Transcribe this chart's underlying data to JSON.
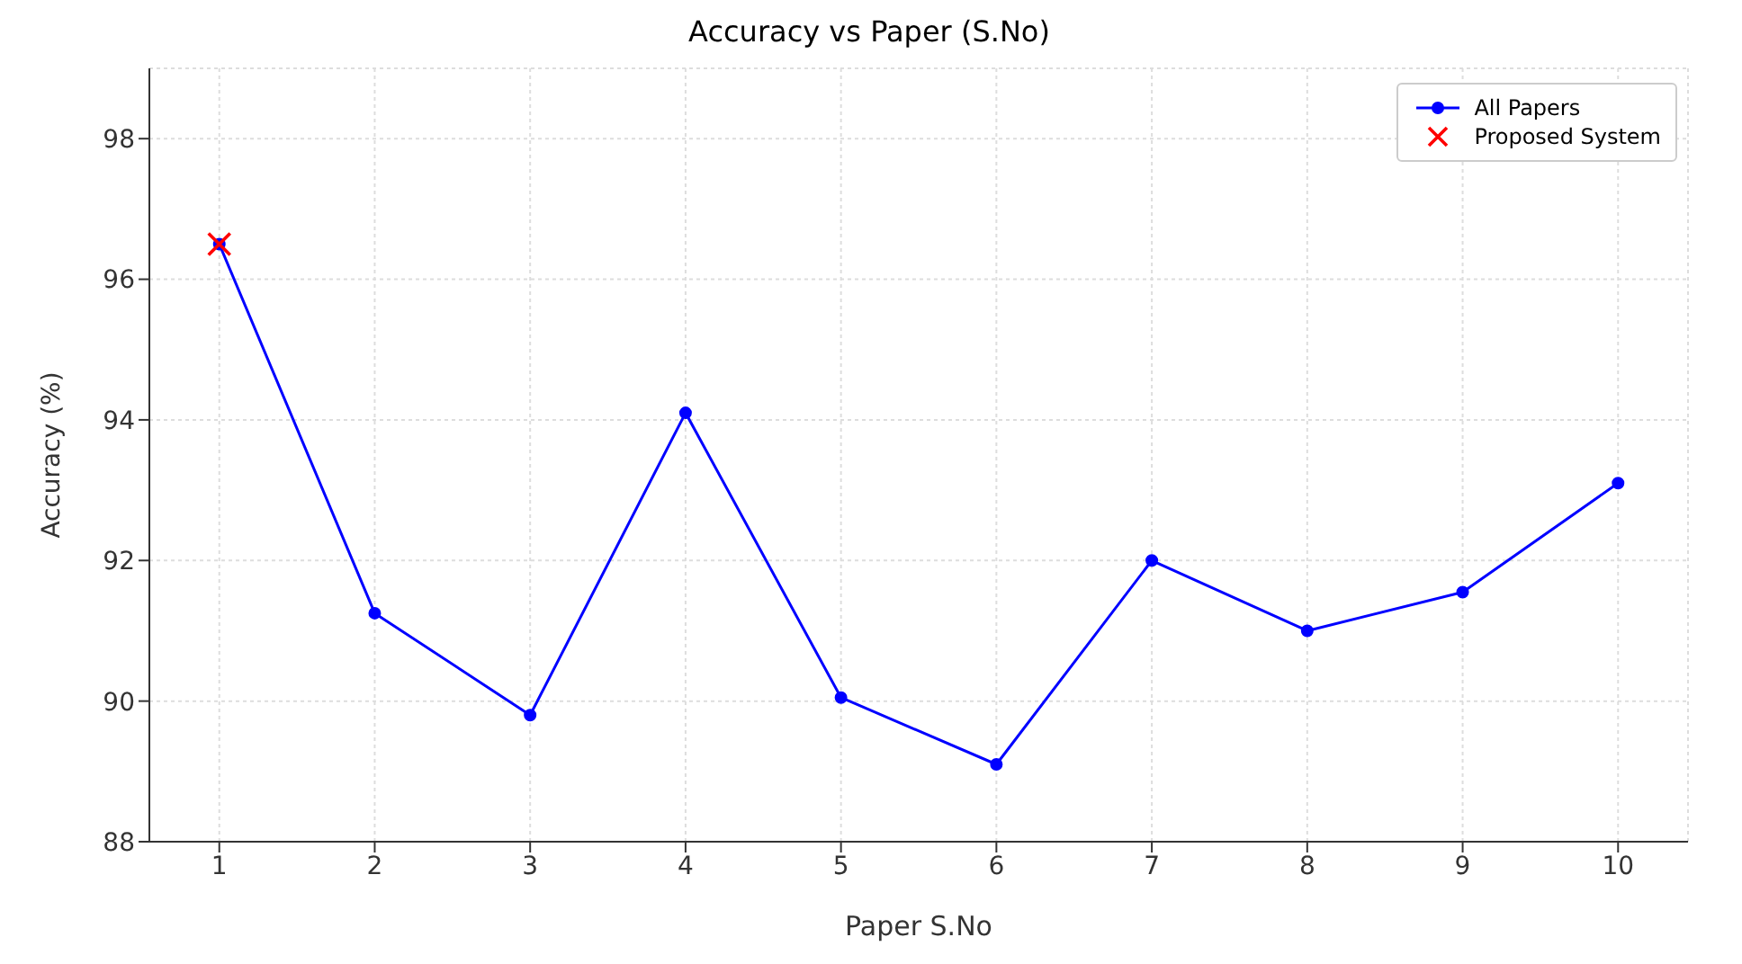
{
  "chart_data": {
    "type": "line",
    "title": "Accuracy vs Paper (S.No)",
    "xlabel": "Paper S.No",
    "ylabel": "Accuracy (%)",
    "x": [
      1,
      2,
      3,
      4,
      5,
      6,
      7,
      8,
      9,
      10
    ],
    "series": [
      {
        "name": "All Papers",
        "color": "#0000ff",
        "marker": "circle",
        "values": [
          96.5,
          91.25,
          89.8,
          94.1,
          90.05,
          89.1,
          92.0,
          91.0,
          91.55,
          93.1
        ]
      },
      {
        "name": "Proposed System",
        "type": "scatter",
        "color": "#ff0000",
        "marker": "cross",
        "x": [
          1
        ],
        "values": [
          96.5
        ]
      }
    ],
    "xlim": [
      0.55,
      10.45
    ],
    "xticks": [
      1,
      2,
      3,
      4,
      5,
      6,
      7,
      8,
      9,
      10
    ],
    "ylim": [
      88,
      99
    ],
    "yticks": [
      88,
      90,
      92,
      94,
      96,
      98
    ],
    "grid": true,
    "legend": "top right"
  }
}
